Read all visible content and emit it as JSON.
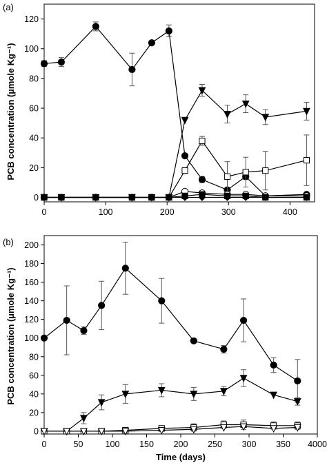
{
  "chart_data": [
    {
      "type": "line",
      "panel_label": "(a)",
      "xlabel": "",
      "ylabel": "PCB concentration (µmole Kg⁻¹)",
      "xlim": [
        0,
        440
      ],
      "ylim": [
        -3,
        130
      ],
      "x_ticks": [
        "0",
        "100",
        "200",
        "300",
        "400"
      ],
      "y_ticks": [
        "0",
        "20",
        "40",
        "60",
        "80",
        "100",
        "120"
      ],
      "grid": false,
      "series": [
        {
          "marker": "filled-circle",
          "x": [
            0,
            28,
            84,
            143,
            175,
            203,
            229,
            257,
            298,
            328,
            360,
            427
          ],
          "y": [
            90,
            91,
            115,
            86,
            104,
            112,
            28,
            12,
            5,
            14,
            1,
            2
          ],
          "err": [
            2,
            3,
            3,
            11,
            0,
            4,
            0,
            2,
            1,
            2,
            1,
            1
          ]
        },
        {
          "marker": "filled-triangle-down",
          "x": [
            0,
            28,
            84,
            143,
            175,
            203,
            229,
            257,
            298,
            328,
            360,
            427
          ],
          "y": [
            0,
            0,
            0,
            0,
            0,
            0,
            52,
            72,
            56,
            63,
            54,
            58
          ],
          "err": [
            0,
            0,
            0,
            0,
            0,
            0,
            0,
            4,
            6,
            6,
            5,
            6
          ]
        },
        {
          "marker": "open-square",
          "x": [
            0,
            28,
            84,
            143,
            175,
            203,
            229,
            257,
            298,
            328,
            360,
            427
          ],
          "y": [
            0,
            0,
            0,
            0,
            0,
            0,
            18,
            38,
            14,
            17,
            18,
            25
          ],
          "err": [
            0,
            0,
            0,
            0,
            0,
            0,
            2,
            3,
            10,
            10,
            13,
            17
          ]
        },
        {
          "marker": "open-circle",
          "x": [
            0,
            28,
            84,
            143,
            175,
            203,
            229,
            257,
            298,
            328,
            360,
            427
          ],
          "y": [
            0,
            0,
            0,
            0,
            0,
            0,
            4,
            3,
            2,
            2,
            1,
            1
          ],
          "err": [
            0,
            0,
            0,
            0,
            0,
            0,
            0,
            0,
            0,
            0,
            0,
            0
          ]
        },
        {
          "marker": "filled-square",
          "x": [
            0,
            28,
            84,
            143,
            175,
            203,
            229,
            257,
            298,
            328,
            360,
            427
          ],
          "y": [
            0,
            0,
            0,
            0,
            0,
            0,
            1,
            2,
            1,
            1,
            0,
            0
          ],
          "err": [
            0,
            0,
            0,
            0,
            0,
            0,
            0,
            0,
            0,
            0,
            0,
            0
          ]
        },
        {
          "marker": "filled-diamond",
          "x": [
            0,
            28,
            84,
            143,
            175,
            203,
            229,
            257,
            298,
            328,
            360,
            427
          ],
          "y": [
            0,
            0,
            0,
            0,
            0,
            0,
            0,
            0,
            0,
            0,
            0,
            0
          ],
          "err": [
            0,
            0,
            0,
            0,
            0,
            0,
            0,
            0,
            0,
            0,
            0,
            0
          ]
        }
      ]
    },
    {
      "type": "line",
      "panel_label": "(b)",
      "xlabel": "Time (days)",
      "ylabel": "PCB concentration (µmole Kg⁻¹)",
      "xlim": [
        0,
        400
      ],
      "ylim": [
        -3,
        210
      ],
      "x_ticks": [
        "0",
        "50",
        "100",
        "150",
        "200",
        "250",
        "300",
        "350",
        "4000"
      ],
      "y_ticks": [
        "0",
        "20",
        "40",
        "60",
        "80",
        "100",
        "120",
        "140",
        "160",
        "180",
        "200"
      ],
      "grid": false,
      "series": [
        {
          "marker": "filled-circle",
          "x": [
            0,
            33,
            58,
            84,
            119,
            172,
            219,
            263,
            292,
            336,
            371
          ],
          "y": [
            100,
            119,
            108,
            135,
            175,
            140,
            97,
            88,
            119,
            71,
            54
          ],
          "err": [
            0,
            37,
            4,
            26,
            28,
            24,
            0,
            4,
            23,
            8,
            23
          ]
        },
        {
          "marker": "filled-triangle-down",
          "x": [
            0,
            33,
            58,
            84,
            119,
            172,
            219,
            263,
            292,
            336,
            371
          ],
          "y": [
            0,
            0,
            14,
            31,
            40,
            44,
            40,
            43,
            57,
            39,
            32
          ],
          "err": [
            0,
            0,
            6,
            8,
            10,
            7,
            7,
            5,
            9,
            0,
            4
          ]
        },
        {
          "marker": "open-square",
          "x": [
            0,
            33,
            58,
            84,
            119,
            172,
            219,
            263,
            292,
            336,
            371
          ],
          "y": [
            0,
            0,
            0,
            0,
            1,
            3,
            4,
            7,
            7,
            6,
            6
          ],
          "err": [
            0,
            0,
            0,
            0,
            0,
            3,
            4,
            4,
            5,
            4,
            4
          ]
        },
        {
          "marker": "open-triangle-down",
          "x": [
            0,
            33,
            58,
            84,
            119,
            172,
            219,
            263,
            292,
            336,
            371
          ],
          "y": [
            0,
            0,
            0,
            0,
            0,
            1,
            2,
            4,
            5,
            3,
            4
          ],
          "err": [
            0,
            0,
            0,
            0,
            0,
            0,
            0,
            0,
            0,
            0,
            0
          ]
        }
      ]
    }
  ]
}
